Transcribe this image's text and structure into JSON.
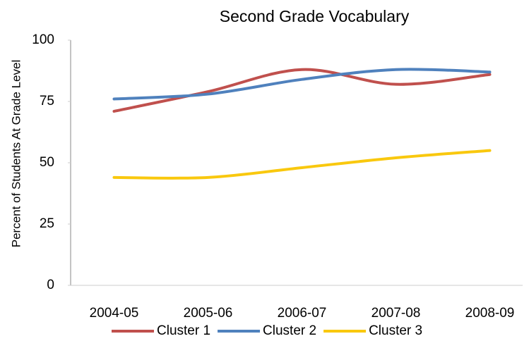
{
  "chart_data": {
    "type": "line",
    "title": "Second Grade Vocabulary",
    "y_label": "Percent of Students At Grade Level",
    "categories": [
      "2004-05",
      "2005-06",
      "2006-07",
      "2007-08",
      "2008-09"
    ],
    "series": [
      {
        "name": "Cluster 1",
        "color": "#c0504d",
        "values": [
          71,
          79,
          88,
          82,
          86
        ]
      },
      {
        "name": "Cluster 2",
        "color": "#4f81bd",
        "values": [
          76,
          78,
          84,
          88,
          87
        ]
      },
      {
        "name": "Cluster 3",
        "color": "#f9c80e",
        "values": [
          44,
          44,
          48,
          52,
          55
        ]
      }
    ],
    "ylim": [
      0,
      100
    ],
    "yticks": [
      0,
      25,
      50,
      75,
      100
    ],
    "grid": false,
    "smooth": true,
    "legend": "bottom"
  }
}
